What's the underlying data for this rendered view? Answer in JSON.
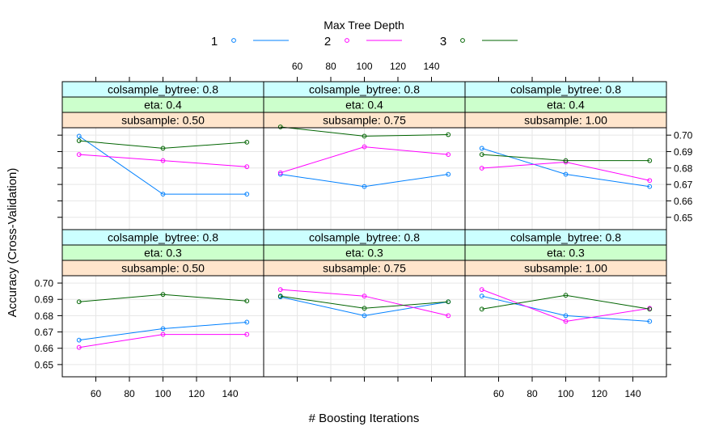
{
  "chart_data": {
    "type": "line",
    "xlabel": "# Boosting Iterations",
    "ylabel": "Accuracy (Cross-Validation)",
    "x": [
      50,
      100,
      150
    ],
    "xticks": [
      60,
      80,
      100,
      120,
      140
    ],
    "yticks": [
      0.65,
      0.66,
      0.67,
      0.68,
      0.69,
      0.7
    ],
    "xlim": [
      40,
      160
    ],
    "ylim": [
      0.6425,
      0.7045
    ],
    "grid": true,
    "legend": {
      "title": "Max Tree Depth",
      "placement": "top",
      "entries": [
        {
          "label": "1",
          "color": "#0080ff"
        },
        {
          "label": "2",
          "color": "#ff00ff"
        },
        {
          "label": "3",
          "color": "#006400"
        }
      ]
    },
    "strip_colors": {
      "colsample_bytree": "#ccffff",
      "eta": "#ccffcc",
      "subsample": "#ffe5cc"
    },
    "panels": [
      {
        "strips": [
          "colsample_bytree: 0.8",
          "eta: 0.4",
          "subsample: 0.50"
        ],
        "series": [
          {
            "depth": "1",
            "values": [
              0.6994,
              0.6641,
              0.6641
            ]
          },
          {
            "depth": "2",
            "values": [
              0.6882,
              0.6845,
              0.6808
            ]
          },
          {
            "depth": "3",
            "values": [
              0.6966,
              0.692,
              0.6957
            ]
          }
        ]
      },
      {
        "strips": [
          "colsample_bytree: 0.8",
          "eta: 0.4",
          "subsample: 0.75"
        ],
        "series": [
          {
            "depth": "1",
            "values": [
              0.6762,
              0.6687,
              0.6762
            ]
          },
          {
            "depth": "2",
            "values": [
              0.6771,
              0.6929,
              0.6882
            ]
          },
          {
            "depth": "3",
            "values": [
              0.705,
              0.6994,
              0.7003
            ]
          }
        ]
      },
      {
        "strips": [
          "colsample_bytree: 0.8",
          "eta: 0.4",
          "subsample: 1.00"
        ],
        "series": [
          {
            "depth": "1",
            "values": [
              0.692,
              0.6762,
              0.6687
            ]
          },
          {
            "depth": "2",
            "values": [
              0.6799,
              0.6836,
              0.6724
            ]
          },
          {
            "depth": "3",
            "values": [
              0.6882,
              0.6845,
              0.6845
            ]
          }
        ]
      },
      {
        "strips": [
          "colsample_bytree: 0.8",
          "eta: 0.3",
          "subsample: 0.50"
        ],
        "series": [
          {
            "depth": "1",
            "values": [
              0.665,
              0.672,
              0.676
            ]
          },
          {
            "depth": "2",
            "values": [
              0.6605,
              0.6685,
              0.6685
            ]
          },
          {
            "depth": "3",
            "values": [
              0.6885,
              0.693,
              0.689
            ]
          }
        ]
      },
      {
        "strips": [
          "colsample_bytree: 0.8",
          "eta: 0.3",
          "subsample: 0.75"
        ],
        "series": [
          {
            "depth": "1",
            "values": [
              0.6915,
              0.68,
              0.6885
            ]
          },
          {
            "depth": "2",
            "values": [
              0.696,
              0.692,
              0.68
            ]
          },
          {
            "depth": "3",
            "values": [
              0.692,
              0.6845,
              0.6885
            ]
          }
        ]
      },
      {
        "strips": [
          "colsample_bytree: 0.8",
          "eta: 0.3",
          "subsample: 1.00"
        ],
        "series": [
          {
            "depth": "1",
            "values": [
              0.692,
              0.68,
              0.6765
            ]
          },
          {
            "depth": "2",
            "values": [
              0.696,
              0.6765,
              0.6845
            ]
          },
          {
            "depth": "3",
            "values": [
              0.684,
              0.6925,
              0.684
            ]
          }
        ]
      }
    ]
  }
}
